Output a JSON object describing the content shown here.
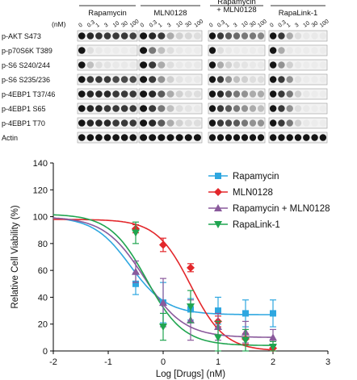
{
  "figure": {
    "blot": {
      "unit_label": "(nM)",
      "groups": [
        {
          "name": "Rapamycin"
        },
        {
          "name": "MLN0128"
        },
        {
          "name": "Rapamycin + MLN0128"
        },
        {
          "name": "RapaLink-1"
        }
      ],
      "concentrations": [
        "0",
        "0.3",
        "1",
        "3",
        "10",
        "30",
        "100"
      ],
      "rows": [
        {
          "label": "p-AKT S473"
        },
        {
          "label": "p-p70S6K T389"
        },
        {
          "label": "p-S6 S240/244"
        },
        {
          "label": "p-S6 S235/236"
        },
        {
          "label": "p-4EBP1 T37/46"
        },
        {
          "label": "p-4EBP1 S65"
        },
        {
          "label": "p-4EBP1 T70"
        },
        {
          "label": "Actin"
        }
      ],
      "band_intensity": [
        [
          [
            1,
            0.95,
            0.92,
            0.9,
            0.9,
            0.9,
            0.88
          ],
          [
            1,
            0.95,
            0.9,
            0.5,
            0.3,
            0.25,
            0.2
          ],
          [
            1,
            0.9,
            0.8,
            0.75,
            0.7,
            0.7,
            0.65
          ],
          [
            1,
            0.9,
            0.5,
            0.2,
            0.1,
            0.1,
            0.1
          ]
        ],
        [
          [
            1,
            0.2,
            0.1,
            0.05,
            0.05,
            0.05,
            0.05
          ],
          [
            1,
            0.7,
            0.4,
            0.2,
            0.1,
            0.05,
            0.05
          ],
          [
            1,
            0.2,
            0.1,
            0.05,
            0.05,
            0.05,
            0.05
          ],
          [
            1,
            0.5,
            0.1,
            0.05,
            0.05,
            0.05,
            0.05
          ]
        ],
        [
          [
            1,
            0.4,
            0.2,
            0.15,
            0.1,
            0.1,
            0.1
          ],
          [
            1,
            0.9,
            0.5,
            0.2,
            0.1,
            0.1,
            0.1
          ],
          [
            1,
            0.5,
            0.3,
            0.2,
            0.15,
            0.1,
            0.1
          ],
          [
            1,
            0.6,
            0.3,
            0.1,
            0.05,
            0.05,
            0.05
          ]
        ],
        [
          [
            1,
            0.9,
            0.9,
            0.9,
            0.85,
            0.85,
            0.85
          ],
          [
            1,
            0.9,
            0.6,
            0.3,
            0.15,
            0.1,
            0.1
          ],
          [
            1,
            0.9,
            0.6,
            0.4,
            0.3,
            0.2,
            0.2
          ],
          [
            1,
            0.9,
            0.6,
            0.15,
            0.05,
            0.05,
            0.05
          ]
        ],
        [
          [
            1,
            0.95,
            0.95,
            0.95,
            0.9,
            0.9,
            0.9
          ],
          [
            1,
            0.95,
            0.8,
            0.5,
            0.3,
            0.2,
            0.2
          ],
          [
            1,
            0.95,
            0.8,
            0.7,
            0.6,
            0.5,
            0.5
          ],
          [
            1,
            0.9,
            0.7,
            0.3,
            0.1,
            0.05,
            0.05
          ]
        ],
        [
          [
            1,
            0.95,
            0.95,
            0.9,
            0.9,
            0.9,
            0.9
          ],
          [
            1,
            0.9,
            0.7,
            0.4,
            0.2,
            0.15,
            0.1
          ],
          [
            1,
            0.9,
            0.8,
            0.7,
            0.6,
            0.5,
            0.4
          ],
          [
            1,
            0.9,
            0.6,
            0.2,
            0.1,
            0.05,
            0.05
          ]
        ],
        [
          [
            1,
            0.95,
            0.95,
            0.95,
            0.9,
            0.9,
            0.9
          ],
          [
            1,
            0.95,
            0.8,
            0.5,
            0.3,
            0.2,
            0.2
          ],
          [
            1,
            0.9,
            0.85,
            0.8,
            0.7,
            0.6,
            0.6
          ],
          [
            1,
            0.9,
            0.7,
            0.3,
            0.1,
            0.05,
            0.05
          ]
        ],
        [
          [
            1,
            1,
            1,
            1,
            1,
            1,
            1
          ],
          [
            1,
            1,
            1,
            1,
            1,
            1,
            1
          ],
          [
            1,
            1,
            1,
            1,
            1,
            1,
            1
          ],
          [
            1,
            1,
            1,
            1,
            1,
            1,
            1
          ]
        ]
      ]
    },
    "chart_data": {
      "type": "scatter",
      "title": "",
      "xlabel": "Log [Drugs] (nM)",
      "ylabel": "Relative Cell Viability (%)",
      "xlim": [
        -2,
        3
      ],
      "ylim": [
        0,
        140
      ],
      "x_ticks": [
        "-2",
        "-1",
        "0",
        "1",
        "2",
        "3"
      ],
      "y_ticks": [
        "0",
        "20",
        "40",
        "60",
        "80",
        "100",
        "120",
        "140"
      ],
      "grid": false,
      "legend_position": "top-right",
      "series": [
        {
          "name": "Rapamycin",
          "color": "#2ea7e0",
          "marker": "square",
          "x": [
            -0.5,
            0,
            0.5,
            1,
            1.5,
            2
          ],
          "y": [
            50,
            36,
            31,
            30,
            28,
            28
          ],
          "err": [
            8,
            15,
            8,
            10,
            10,
            10
          ],
          "curve": {
            "bottom": 27,
            "top": 100,
            "log_ic50": -0.6,
            "hill": 1.3
          }
        },
        {
          "name": "MLN0128",
          "color": "#e3272b",
          "marker": "diamond",
          "x": [
            -0.5,
            0,
            0.5,
            1,
            1.5,
            2
          ],
          "y": [
            91,
            79,
            62,
            22,
            9,
            2
          ],
          "err": [
            3,
            5,
            3,
            4,
            4,
            3
          ],
          "curve": {
            "bottom": 0,
            "top": 98,
            "log_ic50": 0.5,
            "hill": 1.4
          }
        },
        {
          "name": "Rapamycin + MLN0128",
          "color": "#8a5a9c",
          "marker": "triangle",
          "x": [
            -0.5,
            0,
            0.5,
            1,
            1.5,
            2
          ],
          "y": [
            59,
            36,
            23,
            18,
            14,
            10
          ],
          "err": [
            8,
            18,
            15,
            10,
            8,
            6
          ],
          "curve": {
            "bottom": 10,
            "top": 100,
            "log_ic50": -0.35,
            "hill": 1.2
          }
        },
        {
          "name": "RapaLink-1",
          "color": "#20a550",
          "marker": "triangle-down",
          "x": [
            -0.5,
            0,
            0.5,
            1,
            1.5,
            2
          ],
          "y": [
            88,
            18,
            33,
            10,
            8,
            3
          ],
          "err": [
            8,
            10,
            12,
            12,
            8,
            4
          ],
          "curve": {
            "bottom": 4,
            "top": 102,
            "log_ic50": -0.3,
            "hill": 1.3
          }
        }
      ]
    }
  }
}
